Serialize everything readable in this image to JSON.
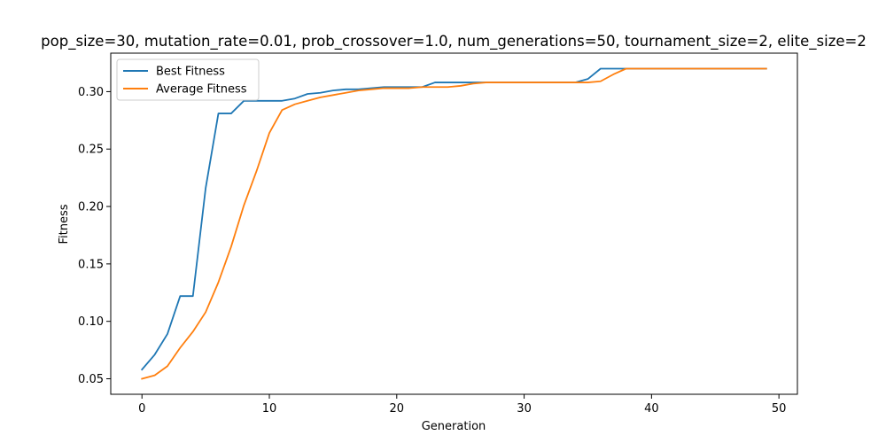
{
  "chart_data": {
    "type": "line",
    "title": "pop_size=30, mutation_rate=0.01, prob_crossover=1.0, num_generations=50, tournament_size=2, elite_size=2",
    "xlabel": "Generation",
    "ylabel": "Fitness",
    "xlim": [
      -2.45,
      51.45
    ],
    "ylim": [
      0.0365,
      0.3335
    ],
    "xticks": [
      0,
      10,
      20,
      30,
      40,
      50
    ],
    "xtick_labels": [
      "0",
      "10",
      "20",
      "30",
      "40",
      "50"
    ],
    "yticks": [
      0.05,
      0.1,
      0.15,
      0.2,
      0.25,
      0.3
    ],
    "ytick_labels": [
      "0.05",
      "0.10",
      "0.15",
      "0.20",
      "0.25",
      "0.30"
    ],
    "grid": false,
    "legend_position": "upper-left",
    "x": [
      0,
      1,
      2,
      3,
      4,
      5,
      6,
      7,
      8,
      9,
      10,
      11,
      12,
      13,
      14,
      15,
      16,
      17,
      18,
      19,
      20,
      21,
      22,
      23,
      24,
      25,
      26,
      27,
      28,
      29,
      30,
      31,
      32,
      33,
      34,
      35,
      36,
      37,
      38,
      39,
      40,
      41,
      42,
      43,
      44,
      45,
      46,
      47,
      48,
      49
    ],
    "series": [
      {
        "name": "Best Fitness",
        "color": "#1f77b4",
        "values": [
          0.058,
          0.071,
          0.089,
          0.122,
          0.122,
          0.216,
          0.281,
          0.281,
          0.292,
          0.292,
          0.292,
          0.292,
          0.294,
          0.298,
          0.299,
          0.301,
          0.302,
          0.302,
          0.303,
          0.304,
          0.304,
          0.304,
          0.304,
          0.308,
          0.308,
          0.308,
          0.308,
          0.308,
          0.308,
          0.308,
          0.308,
          0.308,
          0.308,
          0.308,
          0.308,
          0.311,
          0.32,
          0.32,
          0.32,
          0.32,
          0.32,
          0.32,
          0.32,
          0.32,
          0.32,
          0.32,
          0.32,
          0.32,
          0.32,
          0.32
        ]
      },
      {
        "name": "Average Fitness",
        "color": "#ff7f0e",
        "values": [
          0.05,
          0.053,
          0.061,
          0.077,
          0.091,
          0.108,
          0.134,
          0.165,
          0.201,
          0.231,
          0.264,
          0.284,
          0.289,
          0.292,
          0.295,
          0.297,
          0.299,
          0.301,
          0.302,
          0.303,
          0.303,
          0.303,
          0.304,
          0.304,
          0.304,
          0.305,
          0.307,
          0.308,
          0.308,
          0.308,
          0.308,
          0.308,
          0.308,
          0.308,
          0.308,
          0.308,
          0.309,
          0.315,
          0.32,
          0.32,
          0.32,
          0.32,
          0.32,
          0.32,
          0.32,
          0.32,
          0.32,
          0.32,
          0.32,
          0.32
        ]
      }
    ]
  }
}
